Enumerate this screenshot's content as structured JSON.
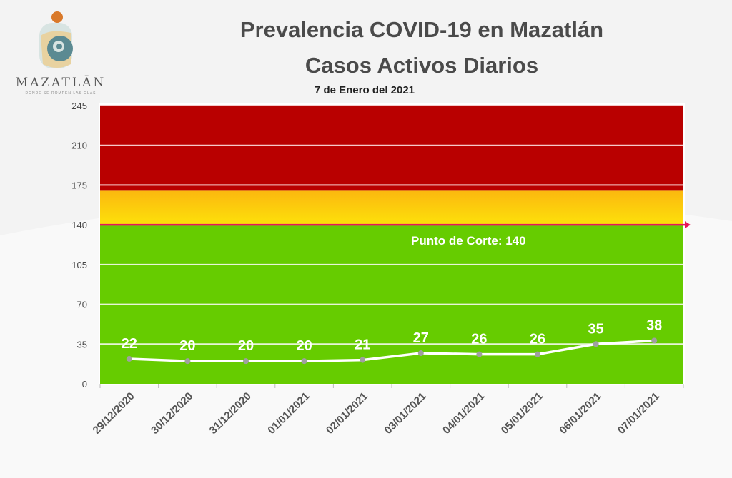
{
  "header": {
    "title_line1": "Prevalencia COVID-19 en Mazatlán",
    "title_line2": "Casos Activos Diarios",
    "date": "7  de Enero del 2021"
  },
  "logo": {
    "name": "MAZATLĀN",
    "tagline": "DONDE SE ROMPEN LAS OLAS"
  },
  "chart_data": {
    "type": "line",
    "title": "Prevalencia COVID-19 en Mazatlán - Casos Activos Diarios",
    "categories": [
      "29/12/2020",
      "30/12/2020",
      "31/12/2020",
      "01/01/2021",
      "02/01/2021",
      "03/01/2021",
      "04/01/2021",
      "05/01/2021",
      "06/01/2021",
      "07/01/2021"
    ],
    "values": [
      22,
      20,
      20,
      20,
      21,
      27,
      26,
      26,
      35,
      38
    ],
    "ylim": [
      0,
      245
    ],
    "yticks": [
      0,
      35,
      70,
      105,
      140,
      175,
      210,
      245
    ],
    "grid": true,
    "bands": [
      {
        "from": 0,
        "to": 140,
        "color": "#66cc00"
      },
      {
        "from": 140,
        "to": 170,
        "color": "#fcc60e"
      },
      {
        "from": 170,
        "to": 245,
        "color": "#b90000"
      }
    ],
    "threshold": {
      "value": 140,
      "label": "Punto de Corte: 140",
      "color": "#e8145a"
    },
    "line_color": "#ffffff",
    "marker_color": "#a0a0a0"
  }
}
